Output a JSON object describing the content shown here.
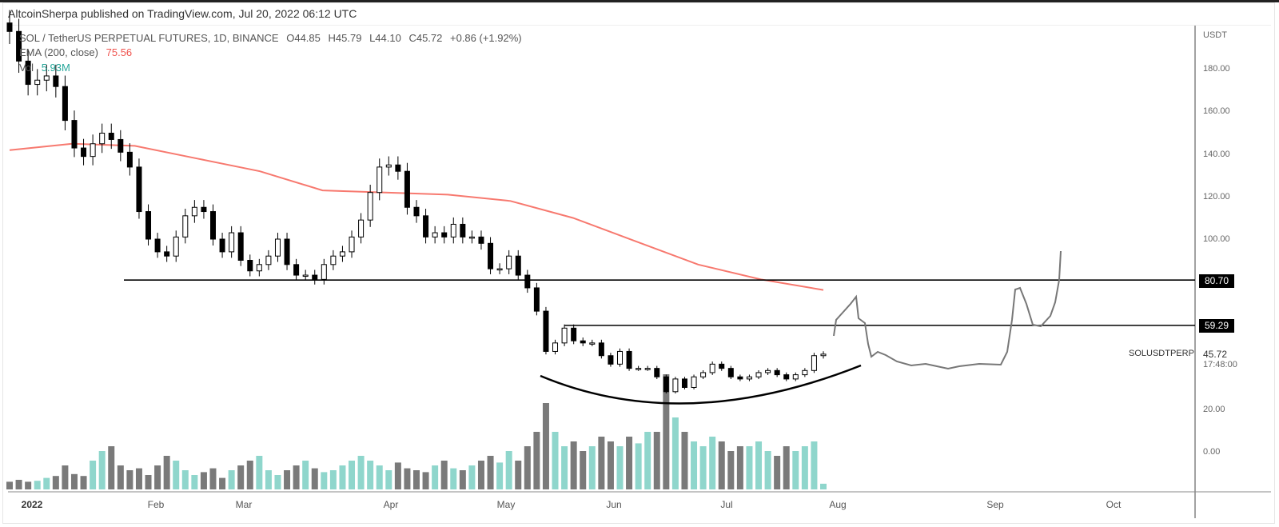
{
  "header": {
    "published": "AltcoinSherpa published on TradingView.com, Jul 20, 2022 06:12 UTC"
  },
  "legend": {
    "symbol": "SOL / TetherUS PERPETUAL FUTURES, 1D, BINANCE",
    "open": "O44.85",
    "high": "H45.79",
    "low": "L44.10",
    "close": "C45.72",
    "change": "+0.86 (+1.92%)",
    "ema_label": "EMA (200, close)",
    "ema_value": "75.56",
    "vol_label": "Vol",
    "vol_value": "5.93M"
  },
  "price_axis": {
    "currency": "USDT",
    "ticks": [
      "180.00",
      "160.00",
      "140.00",
      "120.00",
      "100.00",
      "20.00",
      "0.00"
    ],
    "level_high": "80.70",
    "level_low": "59.29",
    "symbol_tag": "SOLUSDTPERP",
    "last_price": "45.72",
    "countdown": "17:48:00"
  },
  "time_axis": {
    "ticks": [
      "2022",
      "Feb",
      "Mar",
      "Apr",
      "May",
      "Jun",
      "Jul",
      "Aug",
      "Sep",
      "Oct"
    ]
  },
  "colors": {
    "up": "#ffffff",
    "down": "#000000",
    "ema": "#f7796f",
    "vol_up": "#8fd6cc",
    "vol_down": "#7a7a7a",
    "drawing": "#777777"
  },
  "chart_data": {
    "type": "candlestick",
    "title": "SOL / TetherUS PERPETUAL FUTURES, 1D, BINANCE",
    "ylabel": "USDT",
    "ylim": [
      -15,
      200
    ],
    "x_range": [
      "2022-01-01",
      "2022-10-15"
    ],
    "closes": [
      198,
      184,
      173,
      175,
      177,
      172,
      156,
      143,
      139,
      145,
      150,
      147,
      141,
      134,
      113,
      100,
      94,
      92,
      101,
      111,
      115,
      113,
      100,
      94,
      103,
      90,
      85,
      88,
      92,
      100,
      88,
      83,
      83,
      81,
      88,
      92,
      94,
      101,
      109,
      122,
      134,
      135,
      132,
      115,
      111,
      101,
      103,
      101,
      107,
      101,
      101,
      98,
      86,
      86,
      92,
      83,
      77,
      66,
      47,
      51,
      58,
      52,
      51,
      51,
      45,
      41,
      47,
      39,
      39,
      39,
      35,
      28,
      34,
      30,
      35,
      37,
      41,
      39,
      35,
      34,
      35,
      37,
      38,
      36,
      34,
      36,
      38,
      45,
      45.72
    ],
    "volume_millions": [
      8,
      10,
      8,
      9,
      12,
      14,
      25,
      16,
      14,
      30,
      40,
      45,
      25,
      20,
      22,
      15,
      25,
      35,
      30,
      20,
      15,
      18,
      22,
      12,
      20,
      25,
      30,
      35,
      20,
      15,
      20,
      25,
      30,
      22,
      18,
      20,
      25,
      30,
      35,
      30,
      25,
      20,
      28,
      22,
      20,
      18,
      25,
      30,
      22,
      20,
      25,
      30,
      35,
      28,
      40,
      30,
      45,
      60,
      90,
      60,
      45,
      50,
      40,
      45,
      55,
      50,
      45,
      55,
      48,
      60,
      60,
      120,
      75,
      60,
      50,
      45,
      55,
      50,
      40,
      45,
      45,
      50,
      40,
      35,
      45,
      40,
      45,
      50,
      5.93
    ],
    "ema200": [
      142,
      145,
      144,
      138,
      132,
      123,
      122,
      121,
      118,
      110,
      99,
      88,
      81,
      76
    ],
    "horizontal_levels": [
      80.7,
      59.29
    ]
  }
}
